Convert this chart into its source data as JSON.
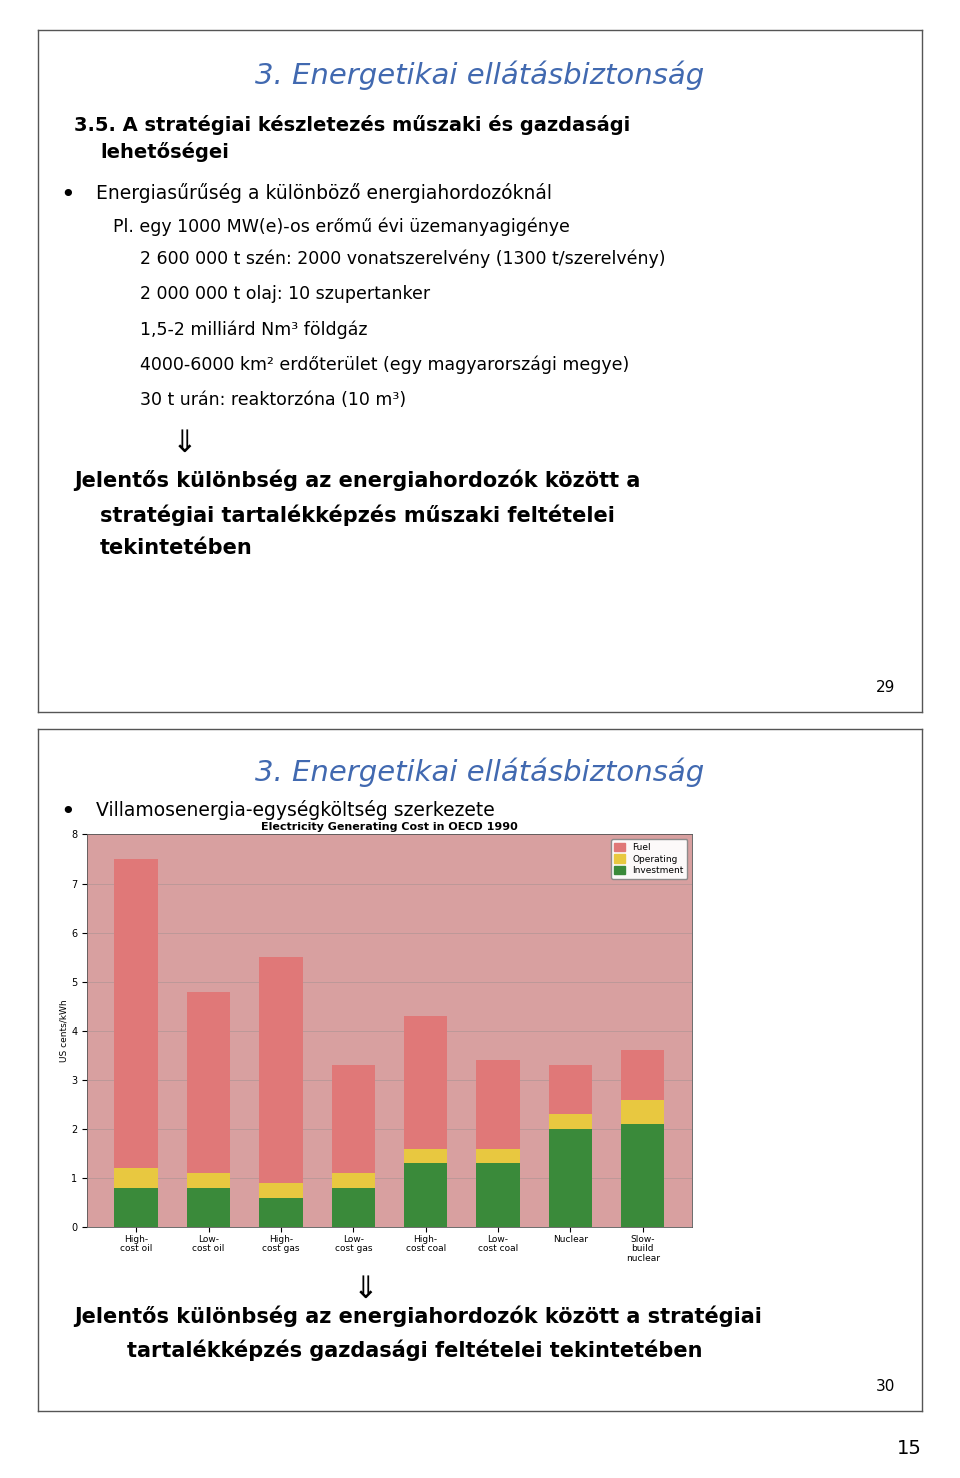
{
  "page_bg": "#ffffff",
  "slide1": {
    "border_color": "#555555",
    "title": "3. Energetikai ellátásbiztonság",
    "title_color": "#4169b0",
    "heading_line1": "3.5. A stratégiai készletezés műszaki és gazdasági",
    "heading_line2": "lehetőségei",
    "heading_color": "#000000",
    "bullet1": "Energiasűrűség a különböző energiahordozóknál",
    "sub_intro": "Pl. egy 1000 MW(e)-os erőmű évi üzemanyagigénye",
    "sub_items": [
      "2 600 000 t szén: 2000 vonatszerelvény (1300 t/szerelvény)",
      "2 000 000 t olaj: 10 szupertanker",
      "1,5-2 milliárd Nm³ földgáz",
      "4000-6000 km² erdőterület (egy magyarországi megye)",
      "30 t urán: reaktorzóna (10 m³)"
    ],
    "arrow": "⇓",
    "conclusion_line1": "Jelentős különbség az energiahordozók között a",
    "conclusion_line2": "stratégiai tartalékképzés műszaki feltételei",
    "conclusion_line3": "tekintetében",
    "page_num": "29"
  },
  "slide2": {
    "border_color": "#555555",
    "title": "3. Energetikai ellátásbiztonság",
    "title_color": "#4169b0",
    "bullet1": "Villamosenergia-egységköltség szerkezete",
    "chart": {
      "title": "Electricity Generating Cost in OECD 1990",
      "ylabel": "US cents/kWh",
      "ylim": [
        0,
        8
      ],
      "yticks": [
        0,
        1,
        2,
        3,
        4,
        5,
        6,
        7,
        8
      ],
      "categories": [
        "High-\ncost oil",
        "Low-\ncost oil",
        "High-\ncost gas",
        "Low-\ncost gas",
        "High-\ncost coal",
        "Low-\ncost coal",
        "Nuclear",
        "Slow-\nbuild\nnuclear"
      ],
      "fuel": [
        6.3,
        3.7,
        4.6,
        2.2,
        2.7,
        1.8,
        1.0,
        1.0
      ],
      "operating": [
        0.4,
        0.3,
        0.3,
        0.3,
        0.3,
        0.3,
        0.3,
        0.5
      ],
      "investment": [
        0.8,
        0.8,
        0.6,
        0.8,
        1.3,
        1.3,
        2.0,
        2.1
      ],
      "fuel_color": "#e07878",
      "operating_color": "#e8c840",
      "investment_color": "#3a8a3a",
      "bg_color": "#d8a0a0"
    },
    "arrow": "⇓",
    "conclusion_line1": "Jelentős különbség az energiahordozók között a stratégiai",
    "conclusion_line2": "tartalékképzés gazdasági feltételei tekintetében",
    "page_num": "30"
  },
  "footer_page_num": "15"
}
